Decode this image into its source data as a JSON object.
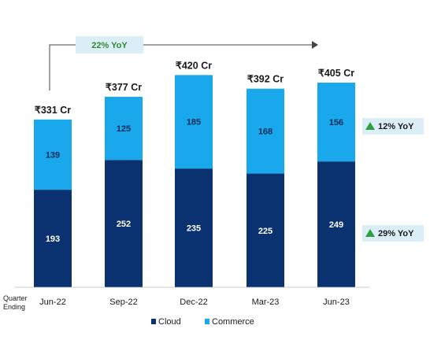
{
  "chart_data": {
    "type": "bar",
    "stacked": true,
    "categories": [
      "Jun-22",
      "Sep-22",
      "Dec-22",
      "Mar-23",
      "Jun-23"
    ],
    "series": [
      {
        "name": "Cloud",
        "color": "#0b3270",
        "values": [
          193,
          252,
          235,
          225,
          249
        ]
      },
      {
        "name": "Commerce",
        "color": "#19a8eb",
        "values": [
          139,
          125,
          185,
          168,
          156
        ]
      }
    ],
    "totals": [
      "₹331 Cr",
      "₹377 Cr",
      "₹420 Cr",
      "₹392 Cr",
      "₹405 Cr"
    ],
    "xlabel": "Quarter Ending",
    "ylim": [
      0,
      420
    ],
    "legend": "bottom",
    "growth": "22% YoY",
    "growth_color": "#2e8b2e",
    "yoy_badges": [
      {
        "text": "12% YoY",
        "series": "Commerce"
      },
      {
        "text": "29% YoY",
        "series": "Cloud"
      }
    ]
  },
  "axis_label_lines": [
    "Quarter",
    "Ending"
  ],
  "badge_color": "#dbeef8",
  "arrow_color": "#2e9e3e",
  "icon": "up-triangle-icon"
}
